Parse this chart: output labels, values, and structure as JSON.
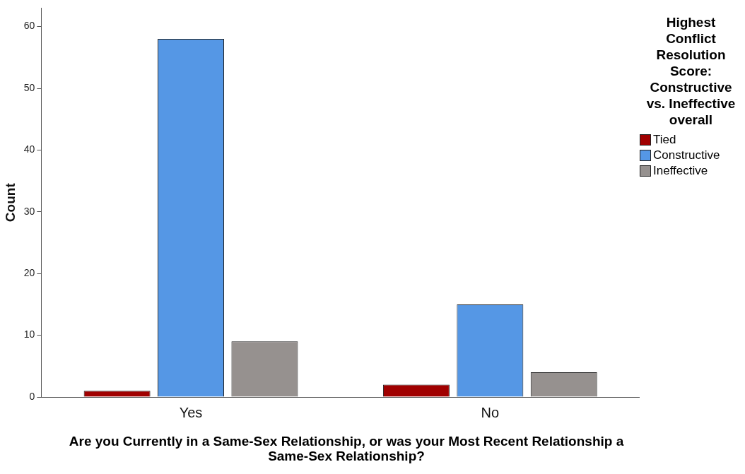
{
  "chart_data": {
    "type": "bar",
    "xlabel": "Are you Currently in a Same-Sex Relationship, or was your Most Recent Relationship a Same-Sex Relationship?",
    "ylabel": "Count",
    "legend_title": "Highest Conflict Resolution Score: Constructive vs. Ineffective overall",
    "legend": "right",
    "categories": [
      "Yes",
      "No"
    ],
    "series": [
      {
        "name": "Tied",
        "color": "#a00000",
        "values": [
          1,
          2
        ]
      },
      {
        "name": "Constructive",
        "color": "#5597e5",
        "values": [
          58,
          15
        ]
      },
      {
        "name": "Ineffective",
        "color": "#96918f",
        "values": [
          9,
          4
        ]
      }
    ],
    "ylim": [
      0,
      63
    ],
    "yticks": [
      0,
      10,
      20,
      30,
      40,
      50,
      60
    ]
  }
}
